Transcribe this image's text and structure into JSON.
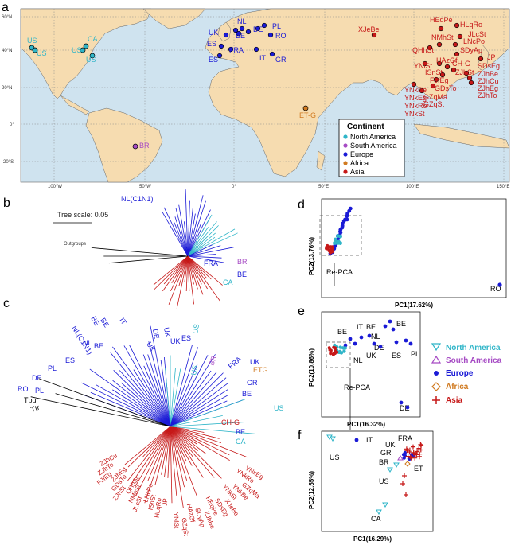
{
  "panels": {
    "a": "a",
    "b": "b",
    "c": "c",
    "d": "d",
    "e": "e",
    "f": "f"
  },
  "colors": {
    "north_america": "#2fb5c8",
    "south_america": "#a64bc4",
    "europe": "#1a1ad6",
    "africa": "#d07a20",
    "asia": "#c61818",
    "land": "#f6dcb0",
    "sea": "#cfe3ef"
  },
  "map": {
    "lat_ticks": [
      "60°N",
      "40°N",
      "20°N",
      "0°",
      "20°S"
    ],
    "lon_ticks": [
      "100°W",
      "50°W",
      "0°",
      "50°E",
      "100°E",
      "150°E"
    ],
    "legend": {
      "title": "Continent",
      "items": [
        "North America",
        "South America",
        "Europe",
        "Africa",
        "Asia"
      ]
    },
    "labels": {
      "na": [
        "US",
        "US",
        "CA",
        "US",
        "US"
      ],
      "sa": [
        "BR"
      ],
      "eu": [
        "UK",
        "NL",
        "BE",
        "DE",
        "PL",
        "RO",
        "ES",
        "FRA",
        "ES",
        "IT",
        "GR"
      ],
      "af": [
        "ET-G"
      ],
      "asia": [
        "XJeBe",
        "HEqPe",
        "HLqRo",
        "JLcSt",
        "LNcPo",
        "NMhSt",
        "QHhSt",
        "SDyAp",
        "JP",
        "YNlSt",
        "HAzGf",
        "CH-G",
        "ZJhSt",
        "ISnSt",
        "FJfEg",
        "GDsTo",
        "YNkBe",
        "YNkEg",
        "YNkRo",
        "YNkSt",
        "GZqMa",
        "GZqSt",
        "SDsEg",
        "ZJhBe",
        "ZJhCu",
        "ZJhEg",
        "ZJhTo"
      ]
    }
  },
  "tree_b": {
    "scale_label": "Tree scale: 0.05",
    "labels": {
      "nl": "NL(C1N1)",
      "outgroups": "Outgroups",
      "fra": "FRA",
      "br": "BR",
      "be": "BE",
      "ca": "CA"
    }
  },
  "tree_c": {
    "labels": {
      "nlc": "NL(C1N1)",
      "be1": "BE",
      "it": "IT",
      "be2": "BE",
      "de1": "DE",
      "uk1": "UK",
      "nl": "NL",
      "be3": "BE",
      "us1": "US",
      "uk2": "UK",
      "es1": "ES",
      "es2": "ES",
      "pl": "PL",
      "de2": "DE",
      "ro": "RO",
      "pl2": "PL",
      "tpu": "Tpu",
      "ttr": "Ttr",
      "br": "BR",
      "fra": "FRA",
      "uk3": "UK",
      "etg": "ETG",
      "gr": "GR",
      "be4": "BE",
      "us2": "US",
      "us3": "US",
      "chg": "CH-G",
      "be5": "BE",
      "ca": "CA",
      "asia": [
        "ZJhCu",
        "ZJhTo",
        "FJfEg",
        "ZJhEg",
        "GDsTo",
        "ZJhSt",
        "QHhSt",
        "NMhSt",
        "JLcSt",
        "LNcPo",
        "ISnSt",
        "HLqRo",
        "JP",
        "YNlSt",
        "GZqSt",
        "HAzGf",
        "SDyAp",
        "ZJhBe",
        "HEqPe",
        "SDsEg",
        "XJeBe",
        "YNkSt",
        "YNkBe",
        "GZqMa",
        "YNkRo",
        "YNkEg"
      ]
    }
  },
  "pca_d": {
    "xlabel": "PC1(17.62%)",
    "ylabel": "PC2(13.76%)",
    "arrow": "Re-PCA",
    "ro": "RO"
  },
  "pca_e": {
    "xlabel": "PC1(16.32%)",
    "ylabel": "PC2(10.86%)",
    "arrow": "Re-PCA",
    "labels": {
      "be1": "BE",
      "it": "IT",
      "be2": "BE",
      "be3": "BE",
      "nl": "NL",
      "de": "DE",
      "es": "ES",
      "pl": "PL",
      "uk": "UK",
      "nl2": "NL",
      "de2": "DE"
    },
    "legend": [
      "North America",
      "South America",
      "Europe",
      "Africa",
      "Asia"
    ]
  },
  "pca_f": {
    "xlabel": "PC1(16.29%)",
    "ylabel": "PC2(12.55%)",
    "labels": {
      "us1": "US",
      "it": "IT",
      "uk": "UK",
      "fra": "FRA",
      "gr": "GR",
      "br": "BR",
      "et": "ET",
      "us2": "US",
      "ca": "CA"
    }
  }
}
